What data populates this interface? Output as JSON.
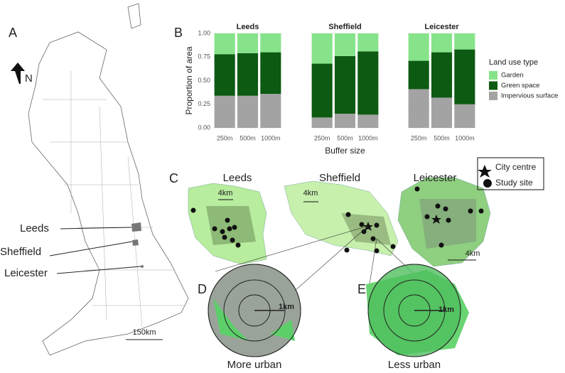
{
  "chart_data": {
    "type": "bar",
    "stacked": true,
    "ylabel": "Proportion of area",
    "xlabel": "Buffer size",
    "legend_title": "Land use type",
    "categories": [
      "250m",
      "500m",
      "1000m"
    ],
    "ylim": [
      0,
      1
    ],
    "yticks": [
      {
        "value": 0,
        "label": "0.00"
      },
      {
        "value": 0.25,
        "label": "0.25"
      },
      {
        "value": 0.5,
        "label": "0.50"
      },
      {
        "value": 0.75,
        "label": "0.75"
      },
      {
        "value": 1,
        "label": "1.00"
      }
    ],
    "series": [
      {
        "name": "Garden",
        "color": "#86e38a"
      },
      {
        "name": "Green space",
        "color": "#0d5a12"
      },
      {
        "name": "Impervious surface",
        "color": "#a3a3a3"
      }
    ],
    "facets": [
      {
        "title": "Leeds",
        "values": [
          [
            0.22,
            0.21,
            0.2
          ],
          [
            0.44,
            0.45,
            0.44
          ],
          [
            0.34,
            0.34,
            0.36
          ]
        ]
      },
      {
        "title": "Sheffield",
        "values": [
          [
            0.32,
            0.24,
            0.19
          ],
          [
            0.57,
            0.61,
            0.67
          ],
          [
            0.11,
            0.15,
            0.14
          ]
        ]
      },
      {
        "title": "Leicester",
        "values": [
          [
            0.29,
            0.2,
            0.17
          ],
          [
            0.3,
            0.48,
            0.58
          ],
          [
            0.41,
            0.32,
            0.25
          ]
        ]
      }
    ]
  },
  "panels": {
    "a": {
      "letter": "A",
      "north": "N",
      "cities": [
        "Leeds",
        "Sheffield",
        "Leicester"
      ],
      "scale": "150km"
    },
    "b": {
      "letter": "B"
    },
    "c": {
      "letter": "C",
      "cities": [
        "Leeds",
        "Sheffield",
        "Leicester"
      ],
      "scales": [
        "4km",
        "4km",
        "4km"
      ],
      "legend": [
        "City centre",
        "Study site"
      ]
    },
    "d": {
      "letter": "D",
      "scale": "1km",
      "caption": "More urban"
    },
    "e": {
      "letter": "E",
      "scale": "1km",
      "caption": "Less urban"
    }
  }
}
